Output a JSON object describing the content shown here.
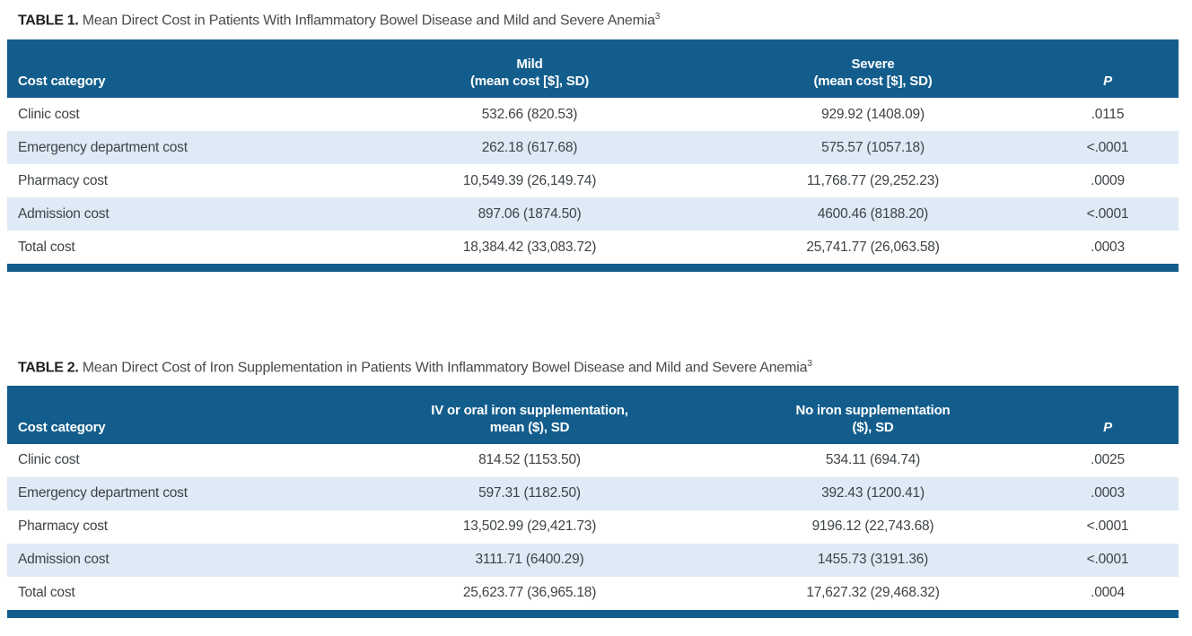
{
  "colors": {
    "header_bg": "#135d8c",
    "bottom_bar": "#135d8c",
    "row_stripe": "#deeaf5",
    "header_text": "#ffffff",
    "body_text": "#3e4347"
  },
  "table1": {
    "title_prefix": "TABLE 1.",
    "title_text": " Mean Direct Cost in Patients With Inflammatory Bowel Disease and Mild and Severe Anemia",
    "title_superscript": "3",
    "columns": {
      "c1": "Cost category",
      "c2_line1": "Mild",
      "c2_line2": "(mean cost [$], SD)",
      "c3_line1": "Severe",
      "c3_line2": "(mean cost [$], SD)",
      "c4": "P"
    },
    "rows": [
      {
        "label": "Clinic cost",
        "v1": "532.66 (820.53)",
        "v2": "929.92 (1408.09)",
        "p": ".0115"
      },
      {
        "label": "Emergency department cost",
        "v1": "262.18 (617.68)",
        "v2": "575.57 (1057.18)",
        "p": "<.0001"
      },
      {
        "label": "Pharmacy cost",
        "v1": "10,549.39 (26,149.74)",
        "v2": "11,768.77 (29,252.23)",
        "p": ".0009"
      },
      {
        "label": "Admission cost",
        "v1": "897.06 (1874.50)",
        "v2": "4600.46 (8188.20)",
        "p": "<.0001"
      },
      {
        "label": "Total cost",
        "v1": "18,384.42 (33,083.72)",
        "v2": "25,741.77 (26,063.58)",
        "p": ".0003"
      }
    ]
  },
  "table2": {
    "title_prefix": "TABLE 2.",
    "title_text": " Mean Direct Cost of Iron Supplementation in Patients With Inflammatory Bowel Disease and Mild and Severe Anemia",
    "title_superscript": "3",
    "columns": {
      "c1": "Cost category",
      "c2_line1": "IV or oral iron supplementation,",
      "c2_line2": "mean ($), SD",
      "c3_line1": "No iron supplementation",
      "c3_line2": "($), SD",
      "c4": "P"
    },
    "rows": [
      {
        "label": "Clinic cost",
        "v1": "814.52 (1153.50)",
        "v2": "534.11 (694.74)",
        "p": ".0025"
      },
      {
        "label": "Emergency department cost",
        "v1": "597.31 (1182.50)",
        "v2": "392.43 (1200.41)",
        "p": ".0003"
      },
      {
        "label": "Pharmacy cost",
        "v1": "13,502.99 (29,421.73)",
        "v2": "9196.12 (22,743.68)",
        "p": "<.0001"
      },
      {
        "label": "Admission cost",
        "v1": "3111.71 (6400.29)",
        "v2": "1455.73 (3191.36)",
        "p": "<.0001"
      },
      {
        "label": "Total cost",
        "v1": "25,623.77 (36,965.18)",
        "v2": "17,627.32 (29,468.32)",
        "p": ".0004"
      }
    ]
  }
}
